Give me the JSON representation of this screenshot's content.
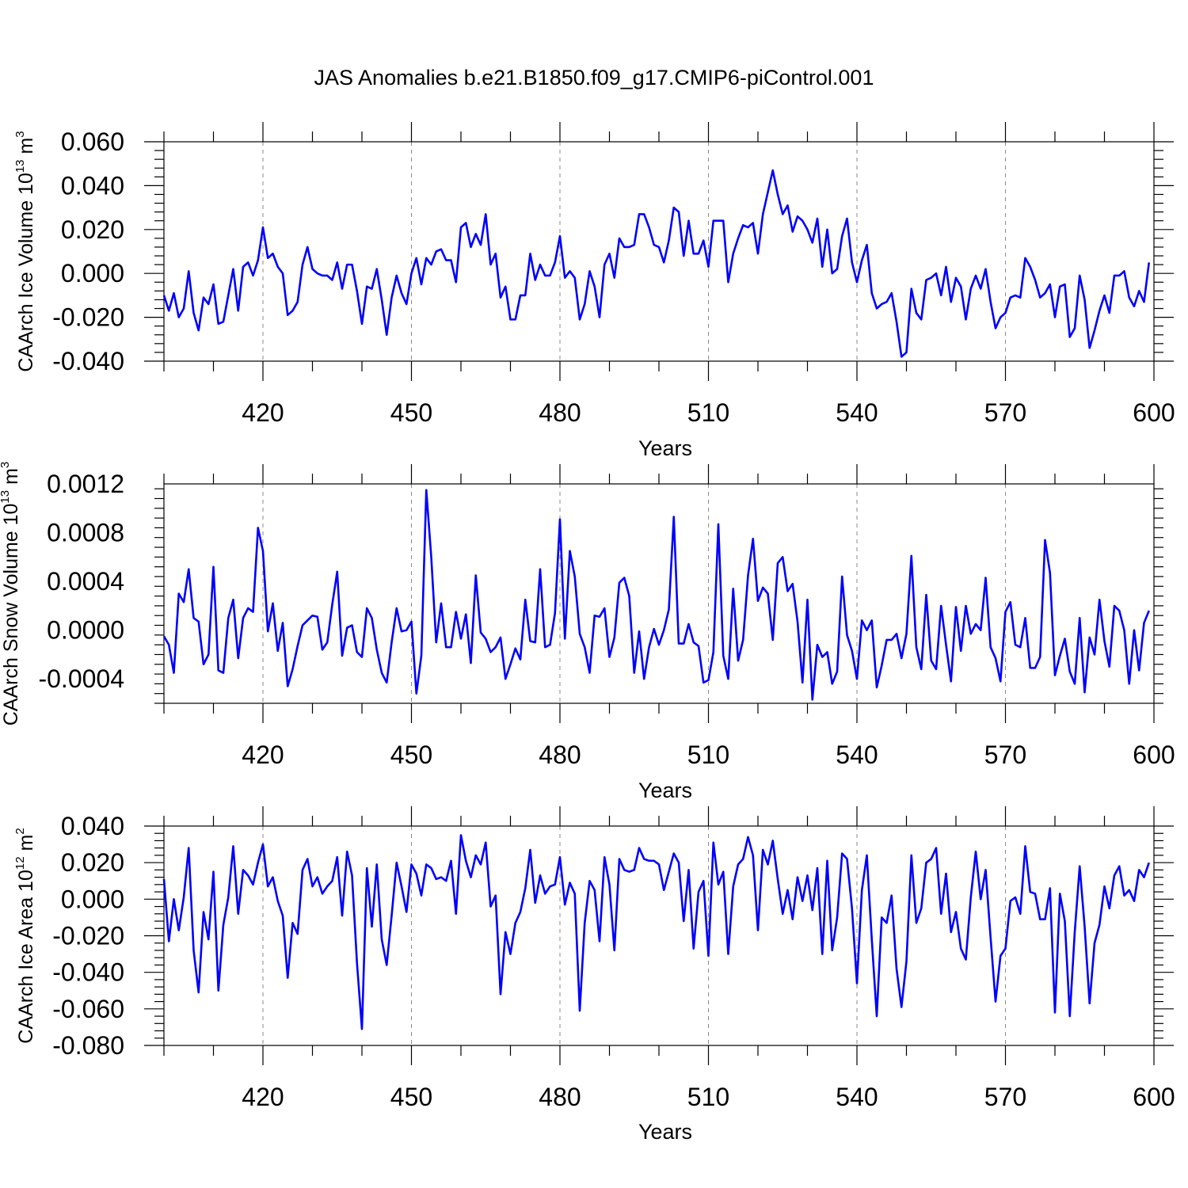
{
  "title": "JAS Anomalies b.e21.B1850.f09_g17.CMIP6-piControl.001",
  "chart_data": [
    {
      "type": "line",
      "ylabel_prefix": "CAArch Ice Volume 10",
      "ylabel_exp": "13",
      "ylabel_unit": " m",
      "ylabel_unit_exp": "3",
      "xlabel": "Years",
      "xlim": [
        400,
        600
      ],
      "ylim": [
        -0.04,
        0.06
      ],
      "xticks": [
        420,
        450,
        480,
        510,
        540,
        570,
        600
      ],
      "xtick_labels": [
        "420",
        "450",
        "480",
        "510",
        "540",
        "570",
        "600"
      ],
      "yticks": [
        -0.04,
        -0.02,
        0.0,
        0.02,
        0.04,
        0.06
      ],
      "ytick_labels": [
        "-0.040",
        "-0.020",
        "0.000",
        "0.020",
        "0.040",
        "0.060"
      ],
      "grid": "dashed vertical at major x ticks",
      "series": [
        {
          "name": "CAArch Ice Volume",
          "color": "#0000ff",
          "x_start": 400,
          "values": [
            -0.01,
            -0.017,
            -0.009,
            -0.02,
            -0.016,
            0.001,
            -0.018,
            -0.026,
            -0.011,
            -0.014,
            -0.005,
            -0.023,
            -0.022,
            -0.01,
            0.002,
            -0.017,
            0.003,
            0.005,
            -0.001,
            0.006,
            0.021,
            0.007,
            0.009,
            0.003,
            0.0,
            -0.019,
            -0.017,
            -0.013,
            0.004,
            0.012,
            0.002,
            0.0,
            -0.001,
            -0.001,
            -0.003,
            0.005,
            -0.007,
            0.004,
            0.004,
            -0.008,
            -0.023,
            -0.006,
            -0.007,
            0.002,
            -0.012,
            -0.028,
            -0.011,
            -0.001,
            -0.009,
            -0.014,
            0.0,
            0.007,
            -0.005,
            0.007,
            0.004,
            0.01,
            0.011,
            0.006,
            0.006,
            -0.004,
            0.021,
            0.023,
            0.012,
            0.018,
            0.013,
            0.027,
            0.004,
            0.009,
            -0.011,
            -0.006,
            -0.021,
            -0.021,
            -0.01,
            -0.01,
            0.009,
            -0.003,
            0.004,
            -0.001,
            -0.001,
            0.005,
            0.017,
            -0.002,
            0.001,
            -0.002,
            -0.021,
            -0.014,
            0.001,
            -0.006,
            -0.02,
            0.004,
            0.009,
            -0.002,
            0.016,
            0.012,
            0.012,
            0.013,
            0.027,
            0.027,
            0.021,
            0.013,
            0.012,
            0.005,
            0.015,
            0.03,
            0.028,
            0.008,
            0.024,
            0.009,
            0.009,
            0.015,
            0.003,
            0.024,
            0.024,
            0.024,
            -0.004,
            0.009,
            0.016,
            0.022,
            0.021,
            0.023,
            0.009,
            0.027,
            0.037,
            0.047,
            0.036,
            0.027,
            0.031,
            0.019,
            0.026,
            0.024,
            0.02,
            0.014,
            0.025,
            0.003,
            0.02,
            0.0,
            0.002,
            0.017,
            0.025,
            0.005,
            -0.004,
            0.006,
            0.013,
            -0.009,
            -0.016,
            -0.014,
            -0.013,
            -0.009,
            -0.022,
            -0.038,
            -0.036,
            -0.007,
            -0.018,
            -0.021,
            -0.003,
            -0.002,
            0.0,
            -0.01,
            0.003,
            -0.013,
            -0.002,
            -0.006,
            -0.021,
            -0.007,
            -0.001,
            -0.007,
            0.002,
            -0.013,
            -0.025,
            -0.02,
            -0.018,
            -0.011,
            -0.01,
            -0.011,
            0.007,
            0.003,
            -0.003,
            -0.011,
            -0.009,
            -0.005,
            -0.02,
            -0.006,
            -0.005,
            -0.029,
            -0.025,
            -0.001,
            -0.012,
            -0.034,
            -0.026,
            -0.017,
            -0.01,
            -0.018,
            -0.001,
            -0.001,
            0.001,
            -0.011,
            -0.015,
            -0.008,
            -0.013,
            0.005
          ]
        }
      ]
    },
    {
      "type": "line",
      "ylabel_prefix": "CAArch Snow Volume 10",
      "ylabel_exp": "13",
      "ylabel_unit": " m",
      "ylabel_unit_exp": "3",
      "xlabel": "Years",
      "xlim": [
        400,
        600
      ],
      "ylim": [
        -0.0006,
        0.0012
      ],
      "xticks": [
        420,
        450,
        480,
        510,
        540,
        570,
        600
      ],
      "xtick_labels": [
        "420",
        "450",
        "480",
        "510",
        "540",
        "570",
        "600"
      ],
      "yticks": [
        -0.0004,
        0.0,
        0.0004,
        0.0008,
        0.0012
      ],
      "ytick_labels": [
        "-0.0004",
        "0.0000",
        "0.0004",
        "0.0008",
        "0.0012"
      ],
      "grid": "dashed vertical at major x ticks",
      "series": [
        {
          "name": "CAArch Snow Volume",
          "color": "#0000ff",
          "x_start": 400,
          "values": [
            -5e-05,
            -0.00012,
            -0.00035,
            0.0003,
            0.00023,
            0.0005,
            0.0001,
            7e-05,
            -0.00028,
            -0.0002,
            0.00052,
            -0.00033,
            -0.00035,
            0.0001,
            0.00025,
            -0.00023,
            0.0001,
            0.00018,
            0.00015,
            0.00084,
            0.00065,
            -1e-05,
            0.00022,
            -0.00017,
            6e-05,
            -0.00046,
            -0.00032,
            -0.00013,
            4e-05,
            8e-05,
            0.00012,
            0.00011,
            -0.00016,
            -0.0001,
            0.00021,
            0.00048,
            -0.00021,
            2e-05,
            4e-05,
            -0.00018,
            -0.00022,
            0.00018,
            0.0001,
            -0.00016,
            -0.00035,
            -0.00043,
            -0.0001,
            0.00018,
            -1e-05,
            0.0,
            7e-05,
            -0.00052,
            -0.00021,
            0.00115,
            0.0006,
            -0.0001,
            0.00022,
            -0.00014,
            -0.00014,
            0.00015,
            -7e-05,
            0.00013,
            -0.00027,
            0.00045,
            -2e-05,
            -7e-05,
            -0.00018,
            -0.00014,
            -6e-05,
            -0.0004,
            -0.00028,
            -0.00015,
            -0.00024,
            0.00025,
            -9e-05,
            -0.0001,
            0.0005,
            -0.00014,
            -0.00012,
            0.00014,
            0.00091,
            -7e-05,
            0.00065,
            0.00044,
            -3e-05,
            -0.00014,
            -0.00035,
            0.00012,
            0.00011,
            0.00018,
            -0.00022,
            -6e-05,
            0.00039,
            0.00043,
            0.00028,
            -0.00035,
            -1e-05,
            -0.0004,
            -0.00014,
            1e-05,
            -0.00012,
            0.0,
            0.00017,
            0.00093,
            -0.00011,
            -0.00011,
            5e-05,
            -0.0001,
            -0.00013,
            -0.00043,
            -0.00041,
            -0.00018,
            0.00087,
            -0.00021,
            -0.0004,
            0.00034,
            -0.00025,
            -8e-05,
            0.00045,
            0.00075,
            0.00024,
            0.00035,
            0.0003,
            -8e-05,
            0.00055,
            0.0006,
            0.00032,
            0.00038,
            7e-05,
            -0.00043,
            0.00025,
            -0.00057,
            -0.00012,
            -0.00022,
            -0.00018,
            -0.00044,
            -0.00034,
            0.00044,
            -4e-05,
            -0.00017,
            -0.0004,
            8e-05,
            0.0,
            8e-05,
            -0.00047,
            -0.00029,
            -8e-05,
            -8e-05,
            -3e-05,
            -0.00023,
            -3e-05,
            0.00061,
            -0.00014,
            -0.00032,
            0.00029,
            -0.00025,
            -0.00032,
            0.0002,
            -0.00012,
            -0.00042,
            0.00019,
            -0.00017,
            0.0002,
            -3e-05,
            5e-05,
            0.0,
            0.00043,
            -0.00014,
            -0.00023,
            -0.00042,
            0.00015,
            0.00023,
            -0.00012,
            -0.00014,
            0.0001,
            -0.00031,
            -0.00031,
            -0.00022,
            0.00074,
            0.00047,
            -0.00037,
            -0.00021,
            -7e-05,
            -0.00034,
            -0.00044,
            0.0001,
            -0.00051,
            -6e-05,
            -0.0002,
            0.00025,
            -9e-05,
            -0.0003,
            0.0002,
            0.00016,
            0.0,
            -0.00044,
            0.0,
            -0.00033,
            6e-05,
            0.00016
          ]
        }
      ]
    },
    {
      "type": "line",
      "ylabel_prefix": "CAArch Ice Area 10",
      "ylabel_exp": "12",
      "ylabel_unit": " m",
      "ylabel_unit_exp": "2",
      "xlabel": "Years",
      "xlim": [
        400,
        600
      ],
      "ylim": [
        -0.08,
        0.04
      ],
      "xticks": [
        420,
        450,
        480,
        510,
        540,
        570,
        600
      ],
      "xtick_labels": [
        "420",
        "450",
        "480",
        "510",
        "540",
        "570",
        "600"
      ],
      "yticks": [
        -0.08,
        -0.06,
        -0.04,
        -0.02,
        0.0,
        0.02,
        0.04
      ],
      "ytick_labels": [
        "-0.080",
        "-0.060",
        "-0.040",
        "-0.020",
        "0.000",
        "0.020",
        "0.040"
      ],
      "grid": "dashed vertical at major x ticks",
      "series": [
        {
          "name": "CAArch Ice Area",
          "color": "#0000ff",
          "x_start": 400,
          "values": [
            0.011,
            -0.023,
            0.0,
            -0.017,
            0.001,
            0.028,
            -0.028,
            -0.051,
            -0.007,
            -0.022,
            0.015,
            -0.05,
            -0.014,
            0.001,
            0.029,
            -0.008,
            0.016,
            0.013,
            0.008,
            0.02,
            0.03,
            0.007,
            0.012,
            -0.001,
            -0.009,
            -0.043,
            -0.013,
            -0.019,
            0.016,
            0.022,
            0.007,
            0.012,
            0.003,
            0.007,
            0.01,
            0.023,
            -0.009,
            0.026,
            0.013,
            -0.035,
            -0.071,
            0.017,
            -0.015,
            0.019,
            -0.022,
            -0.036,
            -0.009,
            0.02,
            0.007,
            -0.007,
            0.019,
            0.014,
            0.002,
            0.019,
            0.017,
            0.011,
            0.012,
            0.01,
            0.021,
            -0.008,
            0.035,
            0.021,
            0.012,
            0.024,
            0.019,
            0.031,
            -0.004,
            0.002,
            -0.052,
            -0.018,
            -0.03,
            -0.013,
            -0.007,
            0.006,
            0.027,
            -0.002,
            0.013,
            0.003,
            0.007,
            0.008,
            0.023,
            -0.003,
            0.009,
            0.003,
            -0.061,
            -0.013,
            0.01,
            0.005,
            -0.023,
            0.023,
            0.008,
            -0.028,
            0.022,
            0.016,
            0.015,
            0.016,
            0.028,
            0.022,
            0.021,
            0.021,
            0.019,
            0.005,
            0.015,
            0.025,
            0.02,
            -0.012,
            0.016,
            -0.027,
            0.004,
            0.01,
            -0.031,
            0.031,
            0.008,
            0.015,
            -0.03,
            0.007,
            0.019,
            0.022,
            0.034,
            0.024,
            -0.017,
            0.027,
            0.019,
            0.032,
            0.011,
            -0.008,
            0.005,
            -0.011,
            0.012,
            -0.001,
            0.013,
            -0.006,
            0.017,
            -0.03,
            0.021,
            -0.028,
            -0.01,
            0.025,
            0.022,
            -0.005,
            -0.046,
            0.005,
            0.024,
            -0.022,
            -0.064,
            -0.01,
            -0.013,
            0.002,
            -0.038,
            -0.059,
            -0.034,
            0.024,
            -0.013,
            -0.005,
            0.02,
            0.022,
            0.028,
            -0.008,
            0.014,
            -0.018,
            -0.007,
            -0.027,
            -0.033,
            0.001,
            0.026,
            0.0,
            0.016,
            -0.021,
            -0.056,
            -0.031,
            -0.027,
            -0.001,
            0.001,
            -0.008,
            0.029,
            0.004,
            0.003,
            -0.011,
            -0.011,
            0.006,
            -0.062,
            0.003,
            -0.012,
            -0.064,
            -0.018,
            0.018,
            -0.015,
            -0.057,
            -0.024,
            -0.014,
            0.007,
            -0.005,
            0.013,
            0.018,
            0.002,
            0.005,
            -0.001,
            0.016,
            0.012,
            0.02
          ]
        }
      ]
    }
  ]
}
